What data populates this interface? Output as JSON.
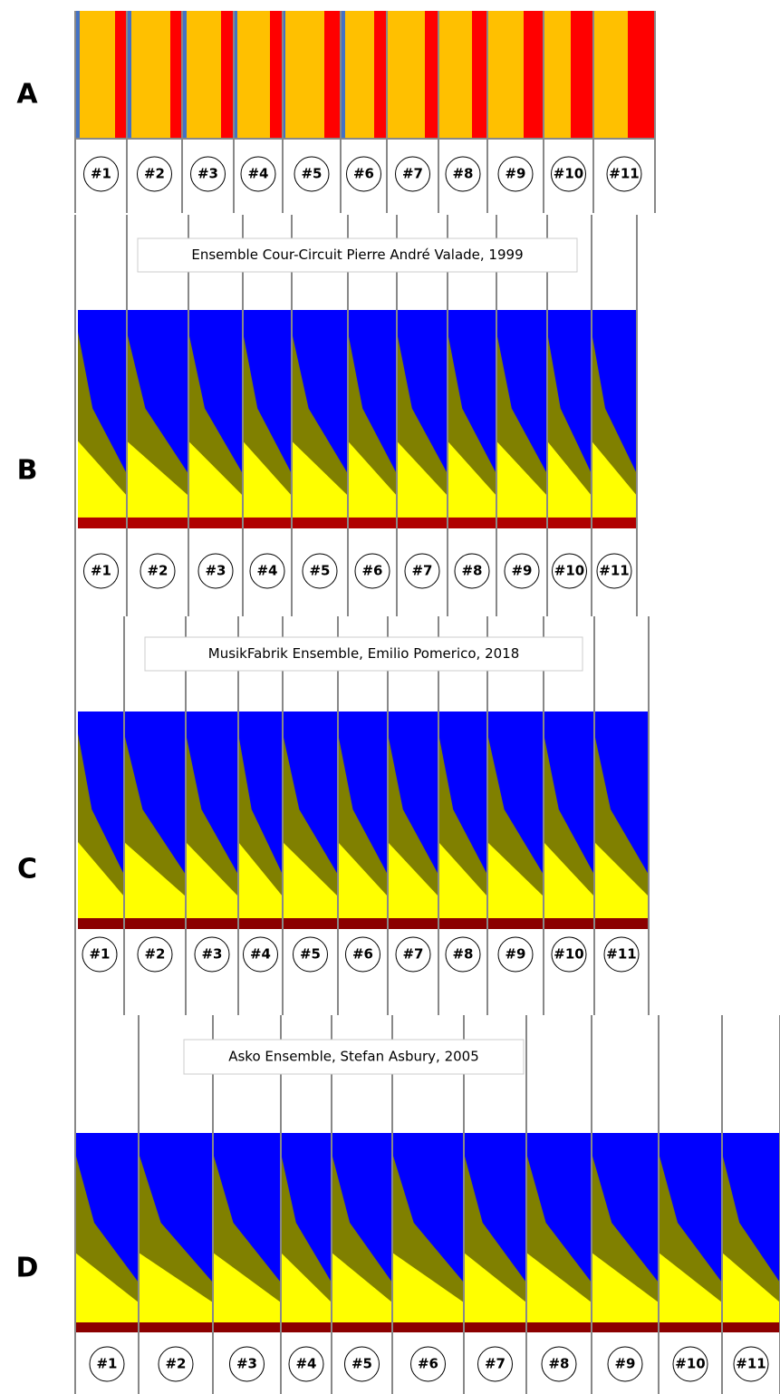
{
  "panels": [
    {
      "label": "A",
      "segments": [
        "#1",
        "#2",
        "#3",
        "#4",
        "#5",
        "#6",
        "#7",
        "#8",
        "#9",
        "#10",
        "#11"
      ]
    },
    {
      "label": "B",
      "caption": "Ensemble Cour-Circuit Pierre André Valade, 1999",
      "segments": [
        "#1",
        "#2",
        "#3",
        "#4",
        "#5",
        "#6",
        "#7",
        "#8",
        "#9",
        "#10",
        "#11"
      ]
    },
    {
      "label": "C",
      "caption": "MusikFabrik Ensemble, Emilio Pomerico, 2018",
      "segments": [
        "#1",
        "#2",
        "#3",
        "#4",
        "#5",
        "#6",
        "#7",
        "#8",
        "#9",
        "#10",
        "#11"
      ]
    },
    {
      "label": "D",
      "caption": "Asko Ensemble, Stefan Asbury, 2005",
      "segments": [
        "#1",
        "#2",
        "#3",
        "#4",
        "#5",
        "#6",
        "#7",
        "#8",
        "#9",
        "#10",
        "#11"
      ]
    }
  ]
}
